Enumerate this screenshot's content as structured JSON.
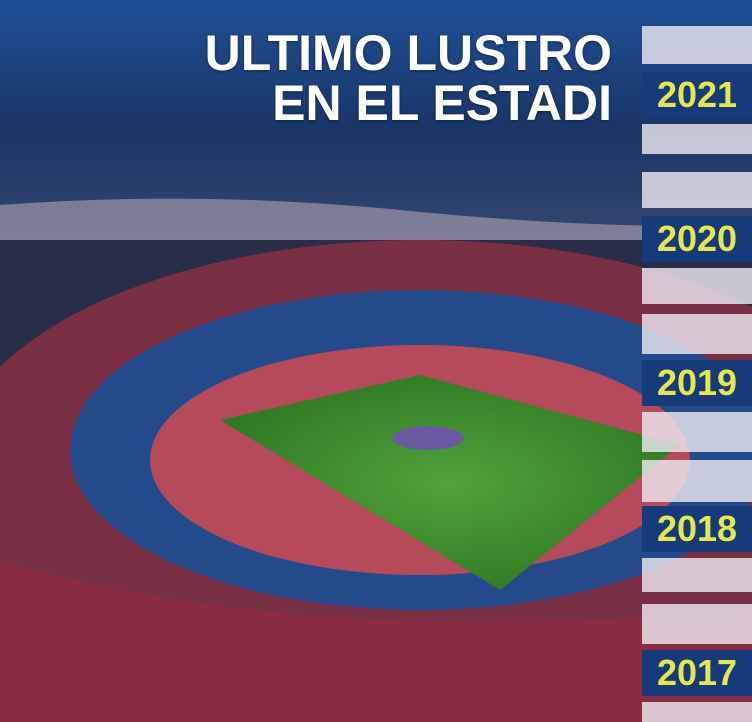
{
  "title": {
    "line1": "ULTIMO LUSTRO",
    "line2": "EN EL ESTADI"
  },
  "years": [
    "2021",
    "2020",
    "2019",
    "2018",
    "2017"
  ],
  "colors": {
    "year_bg": "#163a7a",
    "year_text": "#e6e650",
    "pitch": "#3f8a2a",
    "seats": "#a8384a",
    "sky": "#1c3f78"
  }
}
